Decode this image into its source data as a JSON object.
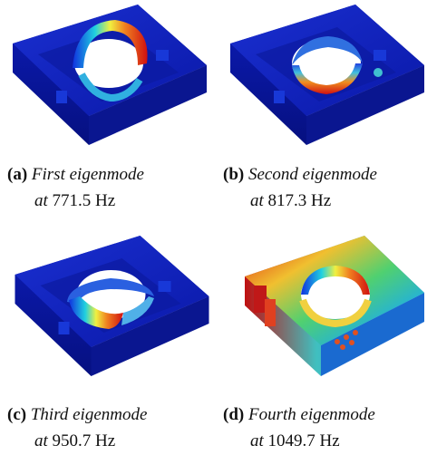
{
  "figures": [
    {
      "label": "(a)",
      "caption": "First eigenmode",
      "at": "at",
      "frequency": "771.5 Hz"
    },
    {
      "label": "(b)",
      "caption": "Second eigenmode",
      "at": "at",
      "frequency": "817.3 Hz"
    },
    {
      "label": "(c)",
      "caption": "Third eigenmode",
      "at": "at",
      "frequency": "950.7 Hz"
    },
    {
      "label": "(d)",
      "caption": "Fourth eigenmode",
      "at": "at",
      "frequency": "1049.7 Hz"
    }
  ]
}
